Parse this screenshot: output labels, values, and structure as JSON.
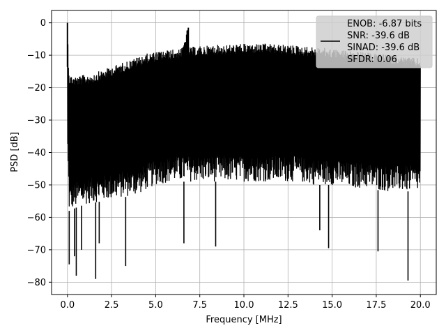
{
  "chart_data": {
    "type": "line",
    "title": "",
    "xlabel": "Frequency [MHz]",
    "ylabel": "PSD [dB]",
    "xlim": [
      -0.9,
      20.9
    ],
    "ylim": [
      -83.8,
      3.8
    ],
    "xticks": [
      0.0,
      2.5,
      5.0,
      7.5,
      10.0,
      12.5,
      15.0,
      17.5,
      20.0
    ],
    "xtick_labels": [
      "0.0",
      "2.5",
      "5.0",
      "7.5",
      "10.0",
      "12.5",
      "15.0",
      "17.5",
      "20.0"
    ],
    "yticks": [
      0,
      -10,
      -20,
      -30,
      -40,
      -50,
      -60,
      -70,
      -80
    ],
    "ytick_labels": [
      "0",
      "−10",
      "−20",
      "−30",
      "−40",
      "−50",
      "−60",
      "−70",
      "−80"
    ],
    "grid": true,
    "legend_placement": "top-right",
    "line_color": "#000000",
    "legend": {
      "lines": [
        "ENOB: -6.87 bits",
        "SNR: -39.6 dB",
        "SINAD: -39.6 dB",
        "SFDR: 0.06"
      ]
    },
    "series": [
      {
        "upper_envelope": [
          [
            0.0,
            0
          ],
          [
            0.05,
            -10
          ],
          [
            0.1,
            -16
          ],
          [
            0.5,
            -16.5
          ],
          [
            1.0,
            -16
          ],
          [
            1.5,
            -15.5
          ],
          [
            2.0,
            -14.5
          ],
          [
            2.5,
            -13.5
          ],
          [
            3.0,
            -12.5
          ],
          [
            3.5,
            -11.5
          ],
          [
            4.0,
            -10.5
          ],
          [
            4.5,
            -9.5
          ],
          [
            5.0,
            -9
          ],
          [
            5.5,
            -8.5
          ],
          [
            6.0,
            -8.2
          ],
          [
            6.5,
            -7.8
          ],
          [
            6.8,
            -1.5
          ],
          [
            6.9,
            -7.5
          ],
          [
            7.5,
            -7.2
          ],
          [
            8.0,
            -7
          ],
          [
            8.5,
            -6.8
          ],
          [
            9.0,
            -6.8
          ],
          [
            9.5,
            -6.6
          ],
          [
            10.0,
            -6.5
          ],
          [
            10.5,
            -6.5
          ],
          [
            11.0,
            -6.4
          ],
          [
            11.5,
            -6.5
          ],
          [
            12.0,
            -6.7
          ],
          [
            12.5,
            -6.8
          ],
          [
            13.0,
            -7
          ],
          [
            13.5,
            -7.3
          ],
          [
            14.0,
            -7.5
          ],
          [
            14.5,
            -7.7
          ],
          [
            15.0,
            -8
          ],
          [
            15.5,
            -8.3
          ],
          [
            16.0,
            -8.6
          ],
          [
            16.5,
            -8.9
          ],
          [
            17.0,
            -9.2
          ],
          [
            17.5,
            -9.5
          ],
          [
            18.0,
            -9.8
          ],
          [
            18.5,
            -10.1
          ],
          [
            19.0,
            -10.4
          ],
          [
            19.5,
            -10.7
          ],
          [
            20.0,
            -11
          ]
        ],
        "lower_envelope": [
          [
            0.0,
            -40
          ],
          [
            0.1,
            -58
          ],
          [
            0.5,
            -57
          ],
          [
            1.0,
            -56
          ],
          [
            2.0,
            -55
          ],
          [
            3.0,
            -54
          ],
          [
            4.0,
            -53
          ],
          [
            5.0,
            -50
          ],
          [
            6.0,
            -49
          ],
          [
            7.0,
            -49
          ],
          [
            8.0,
            -49
          ],
          [
            9.0,
            -49
          ],
          [
            10.0,
            -49
          ],
          [
            11.0,
            -49
          ],
          [
            12.0,
            -49
          ],
          [
            13.0,
            -49
          ],
          [
            14.0,
            -50
          ],
          [
            15.0,
            -50
          ],
          [
            16.0,
            -51
          ],
          [
            17.0,
            -51
          ],
          [
            18.0,
            -52
          ],
          [
            19.0,
            -52
          ],
          [
            20.0,
            -52
          ]
        ],
        "notable_dips": [
          [
            0.1,
            -74.5
          ],
          [
            0.4,
            -72
          ],
          [
            0.5,
            -78
          ],
          [
            0.8,
            -70
          ],
          [
            1.6,
            -79
          ],
          [
            1.8,
            -68
          ],
          [
            3.3,
            -75
          ],
          [
            6.6,
            -68
          ],
          [
            8.4,
            -69
          ],
          [
            14.3,
            -64
          ],
          [
            14.8,
            -69.5
          ],
          [
            17.6,
            -70.5
          ],
          [
            19.3,
            -79.5
          ]
        ],
        "peaks": [
          [
            0.0,
            0
          ],
          [
            6.85,
            -1.5
          ]
        ]
      }
    ]
  }
}
